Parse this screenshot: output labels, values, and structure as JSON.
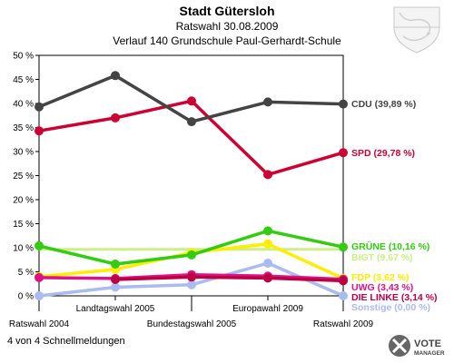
{
  "chart_data": {
    "type": "line",
    "title": "Stadt Gütersloh",
    "subtitle": "Ratswahl 30.08.2009",
    "subtitle2": "Verlauf 140 Grundschule Paul-Gerhardt-Schule",
    "categories": [
      "Ratswahl 2004",
      "Landtagswahl 2005",
      "Bundestagswahl 2005",
      "Europawahl 2009",
      "Ratswahl 2009"
    ],
    "ylim": [
      0,
      50
    ],
    "yticks": [
      "0 %",
      "5 %",
      "10 %",
      "15 %",
      "20 %",
      "25 %",
      "30 %",
      "35 %",
      "40 %",
      "45 %",
      "50 %"
    ],
    "grid": false,
    "series": [
      {
        "name": "BIGT",
        "label": "BIGT (9,67 %)",
        "color": "#ccee88",
        "values": [
          null,
          null,
          null,
          null,
          9.67
        ]
      },
      {
        "name": "Sonstige",
        "label": "Sonstige (0,00 %)",
        "color": "#aabbee",
        "values": [
          0.0,
          1.8,
          2.3,
          6.8,
          0.0
        ]
      },
      {
        "name": "FDP",
        "label": "FDP (3,62 %)",
        "color": "#ffee00",
        "values": [
          4.0,
          5.5,
          9.0,
          10.8,
          3.62
        ]
      },
      {
        "name": "UWG",
        "label": "UWG (3,43 %)",
        "color": "#dd1188",
        "values": [
          3.8,
          3.6,
          4.4,
          4.1,
          3.43
        ]
      },
      {
        "name": "DIE LINKE",
        "label": "DIE LINKE (3,14 %)",
        "color": "#bb0044",
        "values": [
          null,
          3.4,
          3.9,
          3.7,
          3.14
        ]
      },
      {
        "name": "GRÜNE",
        "label": "GRÜNE (10,16 %)",
        "color": "#33cc11",
        "values": [
          10.4,
          6.6,
          8.5,
          13.5,
          10.16
        ]
      },
      {
        "name": "SPD",
        "label": "SPD (29,78 %)",
        "color": "#cc0033",
        "values": [
          34.3,
          37.0,
          40.5,
          25.2,
          29.78
        ]
      },
      {
        "name": "CDU",
        "label": "CDU (39,89 %)",
        "color": "#444444",
        "values": [
          39.3,
          45.8,
          36.2,
          40.3,
          39.89
        ]
      }
    ]
  },
  "footer": {
    "text": "4 von 4 Schnellmeldungen"
  },
  "logo": {
    "line1": "VOTE",
    "line2": "MANAGER"
  }
}
